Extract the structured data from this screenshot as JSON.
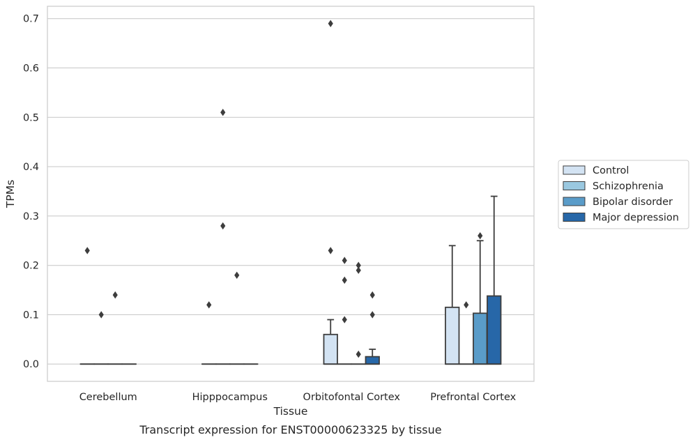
{
  "chart_data": {
    "type": "box",
    "xlabel": "Tissue",
    "ylabel": "TPMs",
    "caption": "Transcript expression for ENST00000623325 by tissue",
    "ylim": [
      -0.035,
      0.725
    ],
    "yticks": [
      "0.0",
      "0.1",
      "0.2",
      "0.3",
      "0.4",
      "0.5",
      "0.6",
      "0.7"
    ],
    "grid": true,
    "legend_position": "right",
    "categories": [
      "Cerebellum",
      "Hipppocampus",
      "Orbitofontal Cortex",
      "Prefrontal Cortex"
    ],
    "series": [
      {
        "name": "Control",
        "color": "#d3e3f3",
        "boxes": [
          {
            "q1": 0,
            "median": 0,
            "q3": 0,
            "whisker_low": 0,
            "whisker_high": 0,
            "outliers": [
              0.23
            ]
          },
          {
            "q1": 0,
            "median": 0,
            "q3": 0,
            "whisker_low": 0,
            "whisker_high": 0,
            "outliers": [
              0.12
            ]
          },
          {
            "q1": 0,
            "median": 0,
            "q3": 0.06,
            "whisker_low": 0,
            "whisker_high": 0.09,
            "outliers": [
              0.23,
              0.69
            ]
          },
          {
            "q1": 0,
            "median": 0,
            "q3": 0.115,
            "whisker_low": 0,
            "whisker_high": 0.24,
            "outliers": []
          }
        ]
      },
      {
        "name": "Schizophrenia",
        "color": "#9ac8e0",
        "boxes": [
          {
            "q1": 0,
            "median": 0,
            "q3": 0,
            "whisker_low": 0,
            "whisker_high": 0,
            "outliers": [
              0.1
            ]
          },
          {
            "q1": 0,
            "median": 0,
            "q3": 0,
            "whisker_low": 0,
            "whisker_high": 0,
            "outliers": [
              0.28,
              0.51
            ]
          },
          {
            "q1": 0,
            "median": 0,
            "q3": 0,
            "whisker_low": 0,
            "whisker_high": 0,
            "outliers": [
              0.21,
              0.17,
              0.09
            ]
          },
          {
            "q1": 0,
            "median": 0,
            "q3": 0,
            "whisker_low": 0,
            "whisker_high": 0,
            "outliers": [
              0.12
            ]
          }
        ]
      },
      {
        "name": "Bipolar disorder",
        "color": "#5a9cc9",
        "boxes": [
          {
            "q1": 0,
            "median": 0,
            "q3": 0,
            "whisker_low": 0,
            "whisker_high": 0,
            "outliers": [
              0.14
            ]
          },
          {
            "q1": 0,
            "median": 0,
            "q3": 0,
            "whisker_low": 0,
            "whisker_high": 0,
            "outliers": [
              0.18
            ]
          },
          {
            "q1": 0,
            "median": 0,
            "q3": 0,
            "whisker_low": 0,
            "whisker_high": 0,
            "outliers": [
              0.2,
              0.19,
              0.02
            ]
          },
          {
            "q1": 0,
            "median": 0,
            "q3": 0.103,
            "whisker_low": 0,
            "whisker_high": 0.25,
            "outliers": [
              0.26
            ]
          }
        ]
      },
      {
        "name": "Major depression",
        "color": "#2767a8",
        "boxes": [
          {
            "q1": 0,
            "median": 0,
            "q3": 0,
            "whisker_low": 0,
            "whisker_high": 0,
            "outliers": []
          },
          {
            "q1": 0,
            "median": 0,
            "q3": 0,
            "whisker_low": 0,
            "whisker_high": 0,
            "outliers": []
          },
          {
            "q1": 0,
            "median": 0,
            "q3": 0.015,
            "whisker_low": 0,
            "whisker_high": 0.03,
            "outliers": [
              0.14,
              0.1
            ]
          },
          {
            "q1": 0,
            "median": 0,
            "q3": 0.138,
            "whisker_low": 0,
            "whisker_high": 0.34,
            "outliers": []
          }
        ]
      }
    ]
  }
}
